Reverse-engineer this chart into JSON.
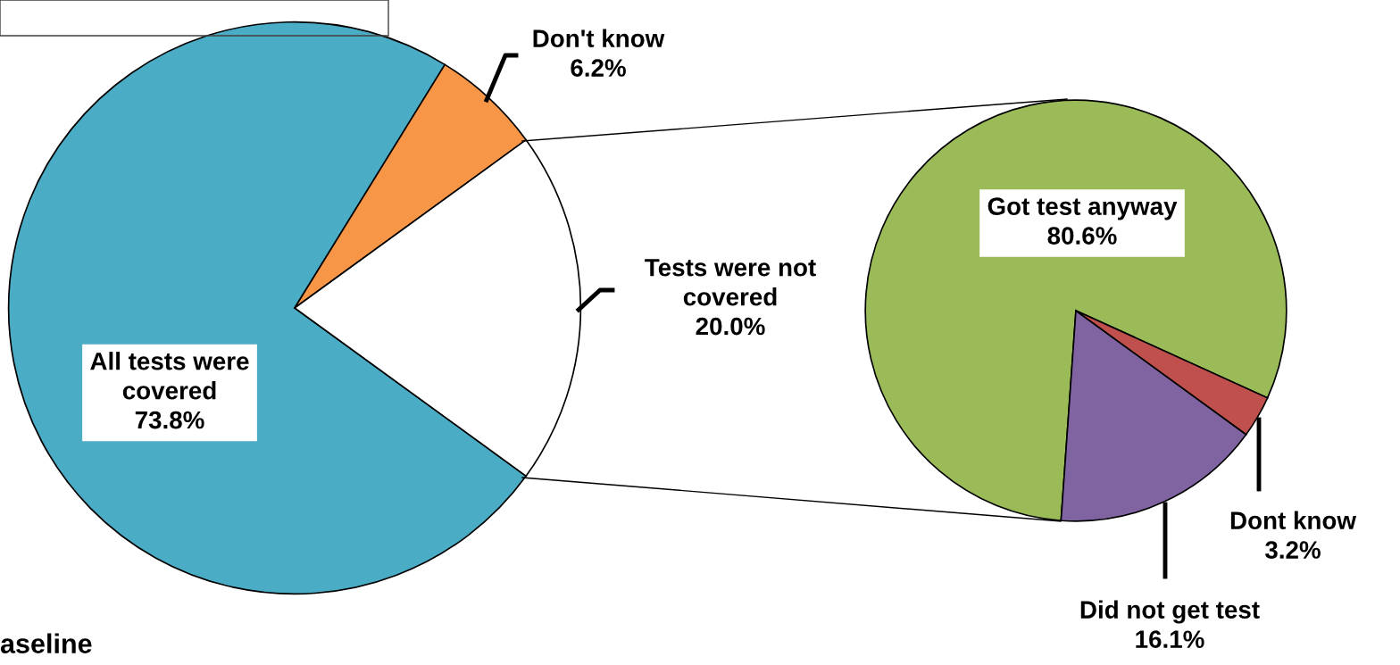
{
  "chart_data": [
    {
      "type": "pie",
      "categories": [
        "All tests were covered",
        "Don't know",
        "Tests were not covered"
      ],
      "values": [
        73.8,
        6.2,
        20.0
      ],
      "colors": [
        "#4bacc6",
        "#f79646",
        "#ffffff"
      ],
      "value_labels": [
        "73.8%",
        "6.2%",
        "20.0%"
      ],
      "annotations": [
        "aseline"
      ]
    },
    {
      "type": "pie",
      "categories": [
        "Got test anyway",
        "Did not get test",
        "Dont know"
      ],
      "values": [
        80.6,
        16.1,
        3.2
      ],
      "colors": [
        "#9bbb59",
        "#8064a2",
        "#c0504d"
      ],
      "value_labels": [
        "80.6%",
        "16.1%",
        "3.2%"
      ]
    }
  ]
}
